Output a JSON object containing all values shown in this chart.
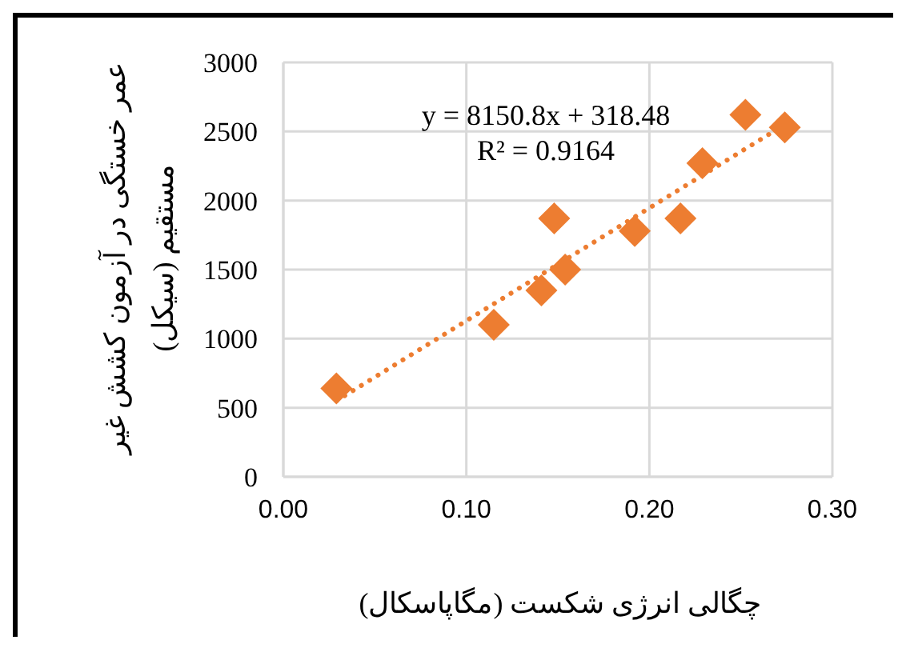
{
  "chart_data": {
    "type": "scatter",
    "xlabel": "چگالی انرژی شکست (مگاپاسکال)",
    "ylabel": "عمر خستگی در آزمون کشش غیر مستقیم (سیکل)",
    "annotations": [
      "y = 8150.8x + 318.48",
      "R² = 0.9164"
    ],
    "xlim": [
      0,
      0.3
    ],
    "xticks": [
      {
        "value": 0,
        "label": "0.00"
      },
      {
        "value": 0.1,
        "label": "0.10"
      },
      {
        "value": 0.2,
        "label": "0.20"
      },
      {
        "value": 0.3,
        "label": "0.30"
      }
    ],
    "ylim": [
      0,
      3000
    ],
    "yticks": [
      0,
      500,
      1000,
      1500,
      2000,
      2500,
      3000
    ],
    "grid": true,
    "series": [
      {
        "type": "line",
        "color": "#ed7d31",
        "line_style": "dotted",
        "marker": "none",
        "x": [
          0.029,
          0.274
        ],
        "values": [
          550,
          2550
        ]
      },
      {
        "color": "#ed7d31",
        "marker": "diamond",
        "x": [
          0.029,
          0.115,
          0.141,
          0.148,
          0.154,
          0.192,
          0.217,
          0.229,
          0.2525,
          0.274
        ],
        "values": [
          640,
          1100,
          1350,
          1870,
          1500,
          1780,
          1870,
          2270,
          2620,
          2530
        ]
      }
    ]
  }
}
